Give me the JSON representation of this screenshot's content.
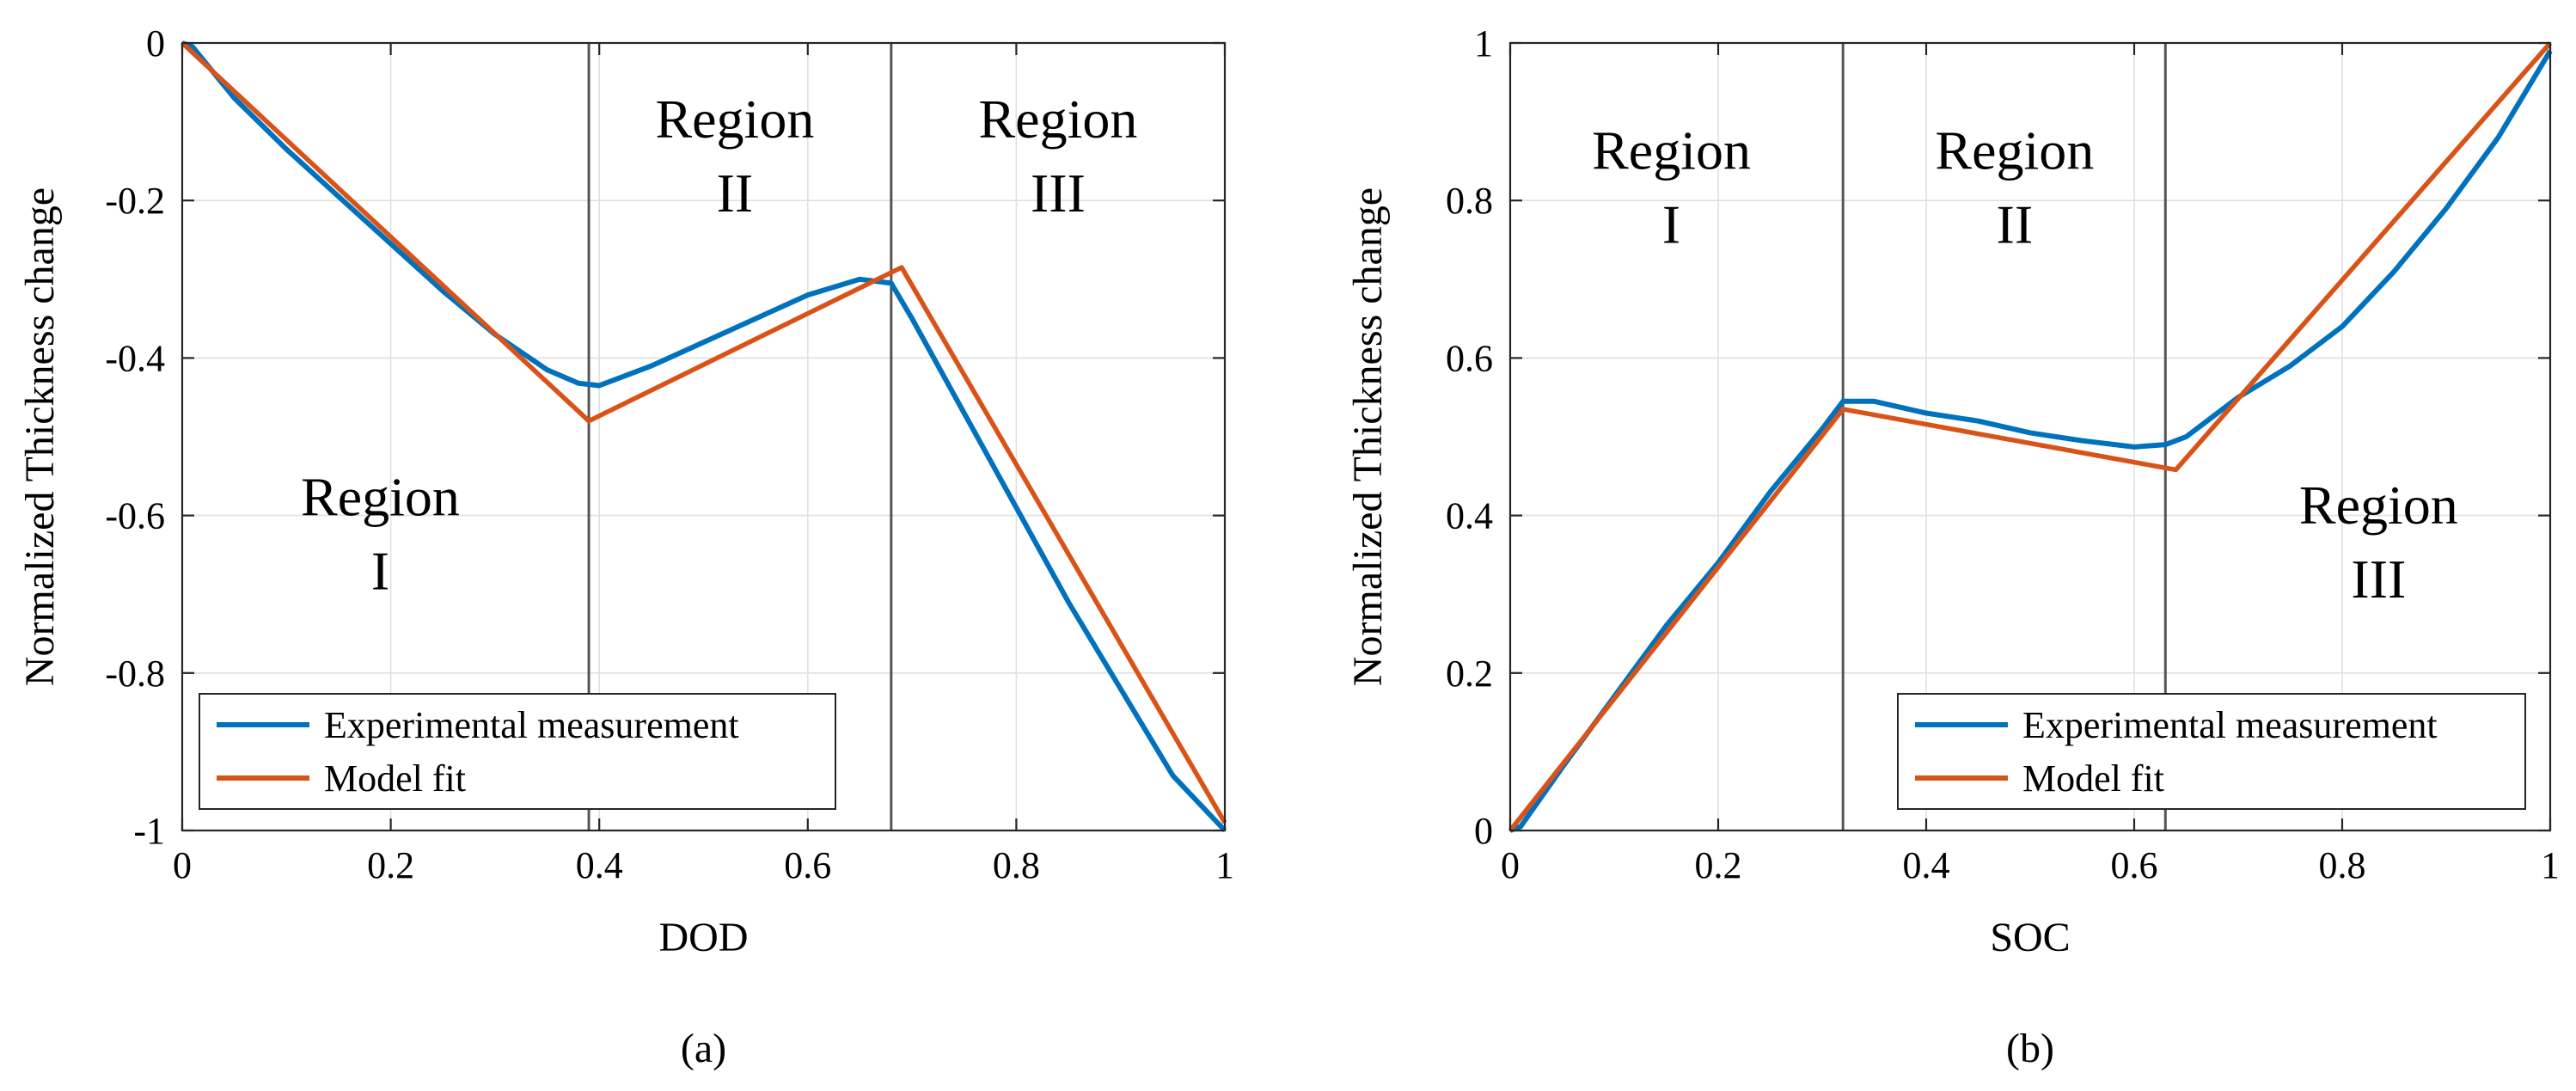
{
  "chart_data": [
    {
      "type": "line",
      "panel_label": "(a)",
      "xlabel": "DOD",
      "ylabel": "Normalized Thickness change",
      "xlim": [
        0,
        1
      ],
      "ylim": [
        -1,
        0
      ],
      "xticks": [
        0,
        0.2,
        0.4,
        0.6,
        0.8,
        1
      ],
      "xtick_labels": [
        "0",
        "0.2",
        "0.4",
        "0.6",
        "0.8",
        "1"
      ],
      "yticks": [
        0,
        -0.2,
        -0.4,
        -0.6,
        -0.8,
        -1
      ],
      "ytick_labels": [
        "0",
        "-0.2",
        "-0.4",
        "-0.6",
        "-0.8",
        "-1"
      ],
      "grid": true,
      "legend_position": "bottom-left",
      "region_boundaries": [
        0.39,
        0.68
      ],
      "regions": [
        {
          "name": "Region",
          "numeral": "I",
          "x": 0.19,
          "y": -0.6
        },
        {
          "name": "Region",
          "numeral": "II",
          "x": 0.53,
          "y": -0.12
        },
        {
          "name": "Region",
          "numeral": "III",
          "x": 0.84,
          "y": -0.12
        }
      ],
      "series": [
        {
          "name": "Experimental measurement",
          "color": "#0072BD",
          "x": [
            0,
            0.01,
            0.05,
            0.1,
            0.15,
            0.2,
            0.25,
            0.3,
            0.35,
            0.38,
            0.4,
            0.45,
            0.5,
            0.55,
            0.6,
            0.65,
            0.68,
            0.7,
            0.75,
            0.8,
            0.85,
            0.9,
            0.95,
            1.0
          ],
          "y": [
            0.0,
            -0.005,
            -0.07,
            -0.135,
            -0.195,
            -0.255,
            -0.315,
            -0.37,
            -0.415,
            -0.432,
            -0.435,
            -0.41,
            -0.38,
            -0.35,
            -0.32,
            -0.3,
            -0.305,
            -0.35,
            -0.47,
            -0.59,
            -0.71,
            -0.82,
            -0.93,
            -1.0
          ]
        },
        {
          "name": "Model fit",
          "color": "#D95319",
          "x": [
            0,
            0.39,
            0.69,
            1.0
          ],
          "y": [
            0.0,
            -0.48,
            -0.285,
            -0.99
          ]
        }
      ]
    },
    {
      "type": "line",
      "panel_label": "(b)",
      "xlabel": "SOC",
      "ylabel": "Normalized Thickness change",
      "xlim": [
        0,
        1
      ],
      "ylim": [
        0,
        1
      ],
      "xticks": [
        0,
        0.2,
        0.4,
        0.6,
        0.8,
        1
      ],
      "xtick_labels": [
        "0",
        "0.2",
        "0.4",
        "0.6",
        "0.8",
        "1"
      ],
      "yticks": [
        0,
        0.2,
        0.4,
        0.6,
        0.8,
        1
      ],
      "ytick_labels": [
        "0",
        "0.2",
        "0.4",
        "0.6",
        "0.8",
        "1"
      ],
      "grid": true,
      "legend_position": "bottom-right",
      "region_boundaries": [
        0.32,
        0.63
      ],
      "regions": [
        {
          "name": "Region",
          "numeral": "I",
          "x": 0.155,
          "y": 0.84
        },
        {
          "name": "Region",
          "numeral": "II",
          "x": 0.485,
          "y": 0.84
        },
        {
          "name": "Region",
          "numeral": "III",
          "x": 0.835,
          "y": 0.39
        }
      ],
      "series": [
        {
          "name": "Experimental measurement",
          "color": "#0072BD",
          "x": [
            0,
            0.01,
            0.05,
            0.1,
            0.15,
            0.2,
            0.25,
            0.3,
            0.32,
            0.35,
            0.4,
            0.45,
            0.5,
            0.55,
            0.6,
            0.63,
            0.65,
            0.7,
            0.75,
            0.8,
            0.85,
            0.9,
            0.95,
            1.0
          ],
          "y": [
            0.0,
            0.005,
            0.08,
            0.17,
            0.26,
            0.34,
            0.43,
            0.51,
            0.545,
            0.545,
            0.53,
            0.52,
            0.505,
            0.495,
            0.487,
            0.49,
            0.5,
            0.55,
            0.59,
            0.64,
            0.71,
            0.79,
            0.88,
            0.99
          ]
        },
        {
          "name": "Model fit",
          "color": "#D95319",
          "x": [
            0,
            0.32,
            0.64,
            1.0
          ],
          "y": [
            0.0,
            0.535,
            0.458,
            1.0
          ]
        }
      ]
    }
  ]
}
